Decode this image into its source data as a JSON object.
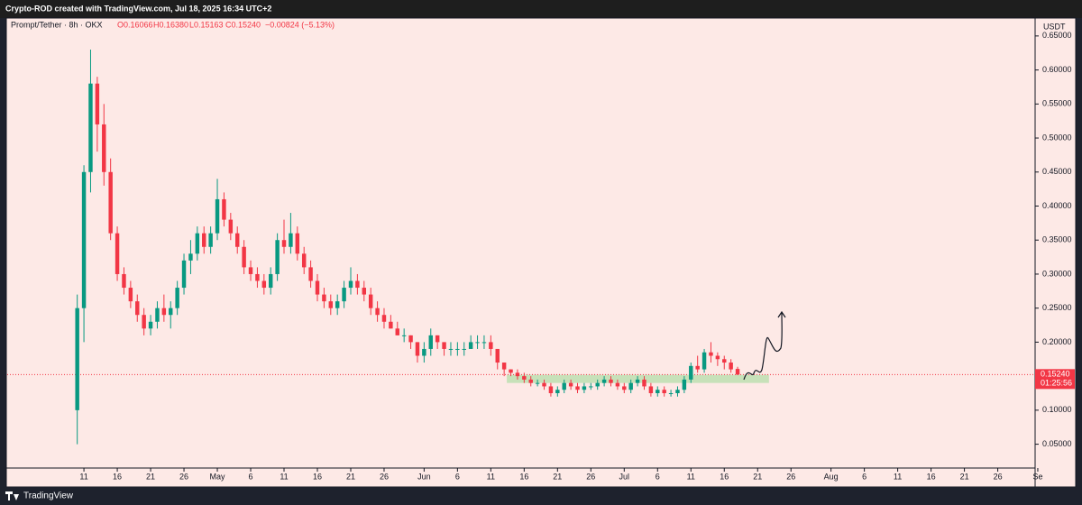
{
  "chart_data": {
    "type": "candlestick",
    "header": "Crypto-ROD created with TradingView.com, Jul 18, 2025 16:34 UTC+2",
    "symbol": "Prompt/Tether · 8h · OKX",
    "ohlc_labels": [
      "O0.16066",
      "H0.16380",
      "L0.15163",
      "C0.15240",
      "−0.00824 (−5.13%)"
    ],
    "currency": "USDT",
    "brand": "TradingView",
    "up_color": "#089981",
    "down_color": "#f23645",
    "xlim": [
      89.5,
      243.6
    ],
    "ylim": [
      0.015,
      0.675
    ],
    "yticks": [
      {
        "value": 0.05,
        "label": "0.05000"
      },
      {
        "value": 0.1,
        "label": "0.10000"
      },
      {
        "value": 0.15,
        "label": "0.15000"
      },
      {
        "value": 0.2,
        "label": "0.20000"
      },
      {
        "value": 0.25,
        "label": "0.25000"
      },
      {
        "value": 0.3,
        "label": "0.30000"
      },
      {
        "value": 0.35,
        "label": "0.35000"
      },
      {
        "value": 0.4,
        "label": "0.40000"
      },
      {
        "value": 0.45,
        "label": "0.45000"
      },
      {
        "value": 0.5,
        "label": "0.50000"
      },
      {
        "value": 0.55,
        "label": "0.55000"
      },
      {
        "value": 0.6,
        "label": "0.60000"
      },
      {
        "value": 0.65,
        "label": "0.65000"
      }
    ],
    "xticks": [
      {
        "value": 101,
        "label": "11"
      },
      {
        "value": 106,
        "label": "16"
      },
      {
        "value": 111,
        "label": "21"
      },
      {
        "value": 116,
        "label": "26"
      },
      {
        "value": 121,
        "label": "May"
      },
      {
        "value": 126,
        "label": "6"
      },
      {
        "value": 131,
        "label": "11"
      },
      {
        "value": 136,
        "label": "16"
      },
      {
        "value": 141,
        "label": "21"
      },
      {
        "value": 146,
        "label": "26"
      },
      {
        "value": 152,
        "label": "Jun"
      },
      {
        "value": 157,
        "label": "6"
      },
      {
        "value": 162,
        "label": "11"
      },
      {
        "value": 167,
        "label": "16"
      },
      {
        "value": 172,
        "label": "21"
      },
      {
        "value": 177,
        "label": "26"
      },
      {
        "value": 182,
        "label": "Jul"
      },
      {
        "value": 187,
        "label": "6"
      },
      {
        "value": 192,
        "label": "11"
      },
      {
        "value": 197,
        "label": "16"
      },
      {
        "value": 202,
        "label": "21"
      },
      {
        "value": 207,
        "label": "26"
      },
      {
        "value": 213,
        "label": "Aug"
      },
      {
        "value": 218,
        "label": "6"
      },
      {
        "value": 223,
        "label": "11"
      },
      {
        "value": 228,
        "label": "16"
      },
      {
        "value": 233,
        "label": "21"
      },
      {
        "value": 238,
        "label": "26"
      },
      {
        "value": 244,
        "label": "Se"
      }
    ],
    "last_price": 0.1524,
    "last_price_label": "0.15240",
    "countdown": "01:25:56",
    "zone": {
      "x": [
        164.4,
        203.7
      ],
      "y": [
        0.14,
        0.152
      ],
      "color": "#b9dfae"
    },
    "candles": [
      [
        100,
        0.1,
        0.27,
        0.05,
        0.25
      ],
      [
        101,
        0.25,
        0.46,
        0.2,
        0.45
      ],
      [
        102,
        0.45,
        0.63,
        0.42,
        0.58
      ],
      [
        103,
        0.58,
        0.59,
        0.48,
        0.52
      ],
      [
        104,
        0.52,
        0.55,
        0.43,
        0.45
      ],
      [
        105,
        0.45,
        0.47,
        0.35,
        0.36
      ],
      [
        106,
        0.36,
        0.37,
        0.29,
        0.3
      ],
      [
        107,
        0.3,
        0.31,
        0.27,
        0.28
      ],
      [
        108,
        0.28,
        0.29,
        0.25,
        0.26
      ],
      [
        109,
        0.26,
        0.27,
        0.23,
        0.24
      ],
      [
        110,
        0.24,
        0.25,
        0.21,
        0.22
      ],
      [
        111,
        0.22,
        0.24,
        0.21,
        0.23
      ],
      [
        112,
        0.23,
        0.26,
        0.22,
        0.25
      ],
      [
        113,
        0.25,
        0.27,
        0.23,
        0.24
      ],
      [
        114,
        0.24,
        0.26,
        0.22,
        0.25
      ],
      [
        115,
        0.25,
        0.29,
        0.24,
        0.28
      ],
      [
        116,
        0.28,
        0.33,
        0.27,
        0.32
      ],
      [
        117,
        0.32,
        0.35,
        0.3,
        0.33
      ],
      [
        118,
        0.33,
        0.37,
        0.32,
        0.36
      ],
      [
        119,
        0.36,
        0.37,
        0.33,
        0.34
      ],
      [
        120,
        0.34,
        0.37,
        0.33,
        0.36
      ],
      [
        121,
        0.36,
        0.44,
        0.35,
        0.41
      ],
      [
        122,
        0.41,
        0.42,
        0.37,
        0.38
      ],
      [
        123,
        0.38,
        0.39,
        0.35,
        0.36
      ],
      [
        124,
        0.36,
        0.37,
        0.33,
        0.34
      ],
      [
        125,
        0.34,
        0.35,
        0.3,
        0.31
      ],
      [
        126,
        0.31,
        0.32,
        0.29,
        0.3
      ],
      [
        127,
        0.3,
        0.31,
        0.28,
        0.29
      ],
      [
        128,
        0.29,
        0.3,
        0.27,
        0.28
      ],
      [
        129,
        0.28,
        0.31,
        0.27,
        0.3
      ],
      [
        130,
        0.3,
        0.36,
        0.29,
        0.35
      ],
      [
        131,
        0.35,
        0.38,
        0.33,
        0.34
      ],
      [
        132,
        0.34,
        0.39,
        0.33,
        0.36
      ],
      [
        133,
        0.36,
        0.37,
        0.32,
        0.33
      ],
      [
        134,
        0.33,
        0.34,
        0.3,
        0.31
      ],
      [
        135,
        0.31,
        0.32,
        0.28,
        0.29
      ],
      [
        136,
        0.29,
        0.3,
        0.26,
        0.27
      ],
      [
        137,
        0.27,
        0.28,
        0.25,
        0.26
      ],
      [
        138,
        0.26,
        0.27,
        0.24,
        0.25
      ],
      [
        139,
        0.25,
        0.27,
        0.24,
        0.26
      ],
      [
        140,
        0.26,
        0.29,
        0.25,
        0.28
      ],
      [
        141,
        0.28,
        0.31,
        0.27,
        0.29
      ],
      [
        142,
        0.29,
        0.3,
        0.27,
        0.28
      ],
      [
        143,
        0.28,
        0.29,
        0.26,
        0.27
      ],
      [
        144,
        0.27,
        0.28,
        0.24,
        0.25
      ],
      [
        145,
        0.25,
        0.26,
        0.23,
        0.24
      ],
      [
        146,
        0.24,
        0.25,
        0.22,
        0.23
      ],
      [
        147,
        0.23,
        0.24,
        0.22,
        0.22
      ],
      [
        148,
        0.22,
        0.23,
        0.21,
        0.21
      ],
      [
        149,
        0.21,
        0.22,
        0.2,
        0.21
      ],
      [
        150,
        0.21,
        0.21,
        0.19,
        0.2
      ],
      [
        151,
        0.2,
        0.2,
        0.17,
        0.18
      ],
      [
        152,
        0.18,
        0.2,
        0.17,
        0.19
      ],
      [
        153,
        0.19,
        0.22,
        0.18,
        0.21
      ],
      [
        154,
        0.21,
        0.21,
        0.19,
        0.2
      ],
      [
        155,
        0.2,
        0.2,
        0.18,
        0.19
      ],
      [
        156,
        0.19,
        0.2,
        0.18,
        0.19
      ],
      [
        157,
        0.19,
        0.2,
        0.18,
        0.19
      ],
      [
        158,
        0.19,
        0.2,
        0.18,
        0.19
      ],
      [
        159,
        0.19,
        0.21,
        0.19,
        0.2
      ],
      [
        160,
        0.2,
        0.21,
        0.19,
        0.2
      ],
      [
        161,
        0.2,
        0.21,
        0.19,
        0.2
      ],
      [
        162,
        0.2,
        0.21,
        0.18,
        0.19
      ],
      [
        163,
        0.19,
        0.19,
        0.16,
        0.17
      ],
      [
        164,
        0.17,
        0.17,
        0.15,
        0.16
      ],
      [
        165,
        0.16,
        0.16,
        0.15,
        0.155
      ],
      [
        166,
        0.155,
        0.16,
        0.145,
        0.15
      ],
      [
        167,
        0.15,
        0.155,
        0.14,
        0.145
      ],
      [
        168,
        0.145,
        0.15,
        0.135,
        0.14
      ],
      [
        169,
        0.14,
        0.145,
        0.135,
        0.14
      ],
      [
        170,
        0.14,
        0.145,
        0.13,
        0.135
      ],
      [
        171,
        0.135,
        0.14,
        0.12,
        0.125
      ],
      [
        172,
        0.125,
        0.135,
        0.12,
        0.13
      ],
      [
        173,
        0.13,
        0.145,
        0.125,
        0.14
      ],
      [
        174,
        0.14,
        0.145,
        0.13,
        0.135
      ],
      [
        175,
        0.135,
        0.14,
        0.125,
        0.13
      ],
      [
        176,
        0.13,
        0.14,
        0.125,
        0.135
      ],
      [
        177,
        0.135,
        0.14,
        0.13,
        0.135
      ],
      [
        178,
        0.135,
        0.145,
        0.13,
        0.14
      ],
      [
        179,
        0.14,
        0.15,
        0.135,
        0.145
      ],
      [
        180,
        0.145,
        0.15,
        0.135,
        0.14
      ],
      [
        181,
        0.14,
        0.145,
        0.13,
        0.135
      ],
      [
        182,
        0.135,
        0.14,
        0.125,
        0.13
      ],
      [
        183,
        0.13,
        0.145,
        0.125,
        0.14
      ],
      [
        184,
        0.14,
        0.15,
        0.135,
        0.145
      ],
      [
        185,
        0.145,
        0.15,
        0.13,
        0.135
      ],
      [
        186,
        0.135,
        0.14,
        0.12,
        0.125
      ],
      [
        187,
        0.125,
        0.135,
        0.12,
        0.13
      ],
      [
        188,
        0.13,
        0.135,
        0.12,
        0.125
      ],
      [
        189,
        0.125,
        0.13,
        0.12,
        0.125
      ],
      [
        190,
        0.125,
        0.135,
        0.12,
        0.13
      ],
      [
        191,
        0.13,
        0.15,
        0.125,
        0.145
      ],
      [
        192,
        0.145,
        0.17,
        0.14,
        0.165
      ],
      [
        193,
        0.165,
        0.18,
        0.155,
        0.16
      ],
      [
        194,
        0.16,
        0.19,
        0.155,
        0.185
      ],
      [
        195,
        0.185,
        0.2,
        0.17,
        0.18
      ],
      [
        196,
        0.18,
        0.185,
        0.165,
        0.175
      ],
      [
        197,
        0.175,
        0.18,
        0.16,
        0.17
      ],
      [
        198,
        0.17,
        0.175,
        0.155,
        0.16
      ],
      [
        199,
        0.16066,
        0.1638,
        0.15163,
        0.1524
      ]
    ]
  }
}
